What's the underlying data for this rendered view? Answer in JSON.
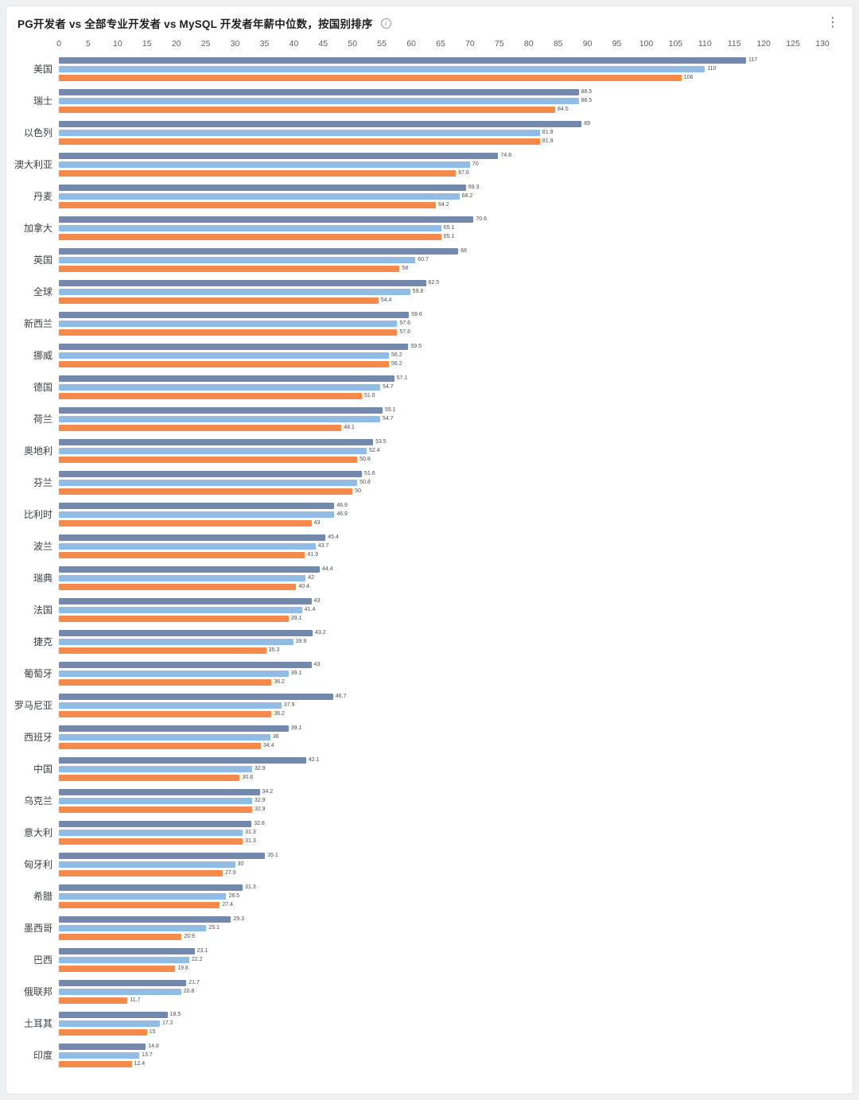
{
  "header": {
    "title": "PG开发者 vs 全部专业开发者 vs MySQL 开发者年薪中位数，按国别排序",
    "icons": {
      "info": "i",
      "menu": "⋮"
    }
  },
  "chart_data": {
    "type": "bar",
    "orientation": "horizontal",
    "title": "PG开发者 vs 全部专业开发者 vs MySQL 开发者年薪中位数，按国别排序",
    "xlabel": "",
    "ylabel": "",
    "xlim": [
      0,
      130
    ],
    "axis_position": "top",
    "axis_ticks": [
      0,
      5,
      10,
      15,
      20,
      25,
      30,
      35,
      40,
      45,
      50,
      55,
      60,
      65,
      70,
      75,
      80,
      85,
      90,
      95,
      100,
      105,
      110,
      115,
      120,
      125,
      130
    ],
    "grid": false,
    "legend": "none",
    "value_labels": true,
    "categories": [
      "美国",
      "瑞士",
      "以色列",
      "澳大利亚",
      "丹麦",
      "加拿大",
      "英国",
      "全球",
      "新西兰",
      "挪威",
      "德国",
      "荷兰",
      "奥地利",
      "芬兰",
      "比利时",
      "波兰",
      "瑞典",
      "法国",
      "捷克",
      "葡萄牙",
      "罗马尼亚",
      "西班牙",
      "中国",
      "乌克兰",
      "意大利",
      "匈牙利",
      "希腊",
      "墨西哥",
      "巴西",
      "俄联邦",
      "土耳其",
      "印度"
    ],
    "series": [
      {
        "name": "PG开发者",
        "key": "pg",
        "color": "#7289ac",
        "values": [
          117,
          88.5,
          89,
          74.8,
          69.3,
          70.6,
          68,
          62.5,
          59.6,
          59.5,
          57.1,
          55.1,
          53.5,
          51.6,
          46.9,
          45.4,
          44.4,
          43,
          43.2,
          43,
          46.7,
          39.1,
          42.1,
          34.2,
          32.8,
          35.1,
          31.3,
          29.3,
          23.1,
          21.7,
          18.5,
          14.8
        ]
      },
      {
        "name": "全部专业开发者",
        "key": "all-devs",
        "color": "#90bce8",
        "values": [
          110,
          88.5,
          81.9,
          70,
          68.2,
          65.1,
          60.7,
          59.8,
          57.6,
          56.2,
          54.7,
          54.7,
          52.4,
          50.8,
          46.9,
          43.7,
          42,
          41.4,
          39.9,
          39.1,
          37.9,
          36,
          32.9,
          32.9,
          31.3,
          30,
          28.5,
          25.1,
          22.2,
          20.8,
          17.2,
          13.7
        ]
      },
      {
        "name": "MySQL开发者",
        "key": "mysql",
        "color": "#f58a4b",
        "values": [
          106,
          84.5,
          81.9,
          67.6,
          64.2,
          65.1,
          58,
          54.4,
          57.6,
          56.2,
          51.6,
          48.1,
          50.8,
          50,
          43,
          41.9,
          40.4,
          39.1,
          35.3,
          36.2,
          36.2,
          34.4,
          30.8,
          32.9,
          31.3,
          27.9,
          27.4,
          20.9,
          19.8,
          11.7,
          15,
          12.4
        ]
      }
    ]
  }
}
